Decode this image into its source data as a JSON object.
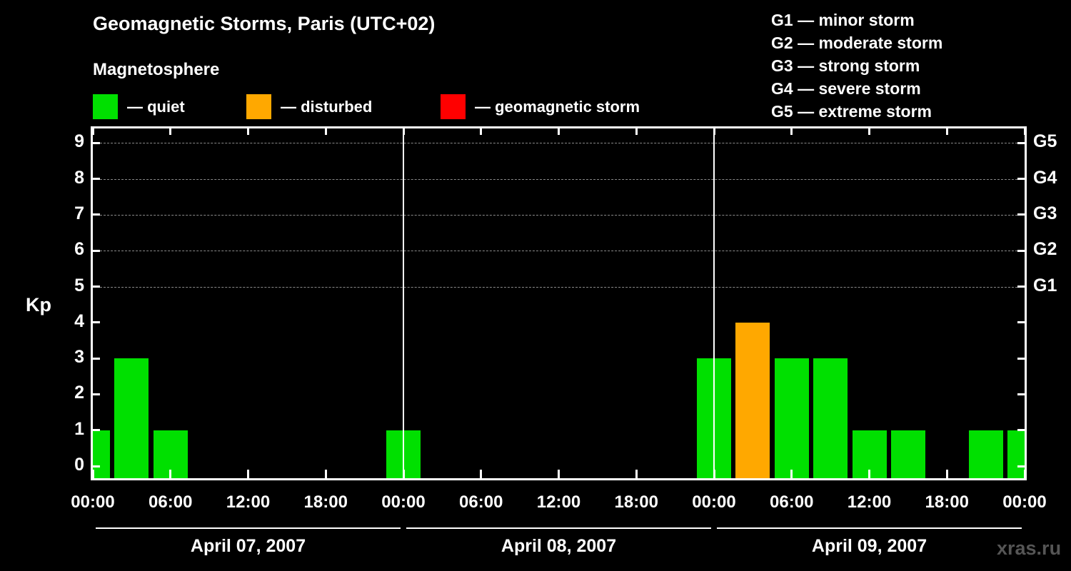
{
  "title": "Geomagnetic Storms, Paris (UTC+02)",
  "subtitle": "Magnetosphere",
  "watermark": "xras.ru",
  "legend": {
    "items": [
      {
        "name": "quiet",
        "label": "— quiet",
        "color": "#00e000"
      },
      {
        "name": "disturbed",
        "label": "— disturbed",
        "color": "#ffa800"
      },
      {
        "name": "storm",
        "label": "— geomagnetic storm",
        "color": "#ff0000"
      }
    ]
  },
  "storm_scale_legend": [
    "G1 — minor storm",
    "G2 — moderate storm",
    "G3 — strong storm",
    "G4 — severe storm",
    "G5 — extreme storm"
  ],
  "chart_data": {
    "type": "bar",
    "title": "Geomagnetic Storms, Paris (UTC+02)",
    "xlabel": "",
    "ylabel": "Kp",
    "ylim": [
      0,
      9
    ],
    "y_ticks": [
      0,
      1,
      2,
      3,
      4,
      5,
      6,
      7,
      8,
      9
    ],
    "grid_dashed_levels": [
      5,
      6,
      7,
      8,
      9
    ],
    "right_axis_labels": [
      {
        "kp": 5,
        "label": "G1"
      },
      {
        "kp": 6,
        "label": "G2"
      },
      {
        "kp": 7,
        "label": "G3"
      },
      {
        "kp": 8,
        "label": "G4"
      },
      {
        "kp": 9,
        "label": "G5"
      }
    ],
    "x_tick_labels": [
      "00:00",
      "06:00",
      "12:00",
      "18:00",
      "00:00",
      "06:00",
      "12:00",
      "18:00",
      "00:00",
      "06:00",
      "12:00",
      "18:00",
      "00:00"
    ],
    "interval_hours": 3,
    "bar_times": [
      "00:00",
      "03:00",
      "06:00",
      "09:00",
      "12:00",
      "15:00",
      "18:00",
      "21:00"
    ],
    "days": [
      {
        "label": "April 07, 2007",
        "values": [
          1,
          3,
          1,
          0,
          0,
          0,
          0,
          0
        ]
      },
      {
        "label": "April 08, 2007",
        "values": [
          1,
          0,
          0,
          0,
          0,
          0,
          0,
          0
        ]
      },
      {
        "label": "April 09, 2007",
        "values": [
          3,
          4,
          3,
          3,
          1,
          1,
          0,
          1
        ]
      }
    ],
    "trailing_value": 1,
    "color_rules": {
      "quiet_max": 3,
      "disturbed_max": 4,
      "quiet": "#00e000",
      "disturbed": "#ffa800",
      "storm": "#ff0000"
    }
  }
}
